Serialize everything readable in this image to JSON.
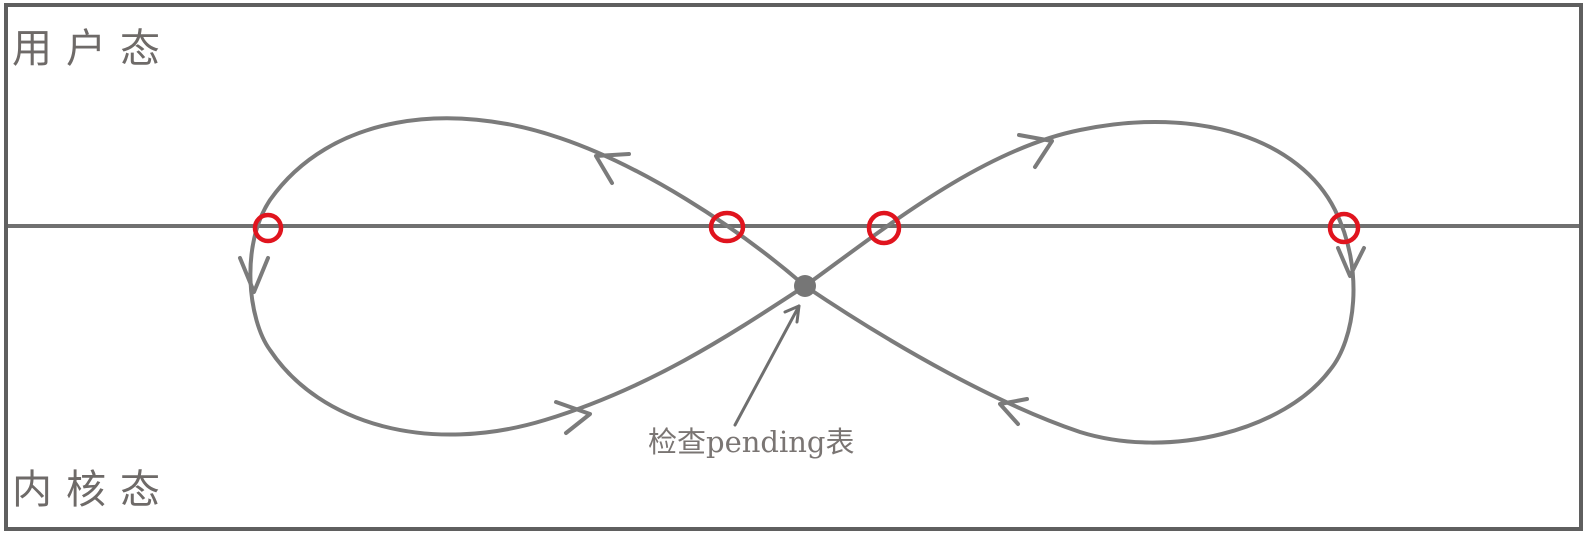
{
  "zones": {
    "user_mode_label": "用户态",
    "kernel_mode_label": "内核态"
  },
  "annotation": {
    "pending_check_label": "检查pending表"
  },
  "colors": {
    "frame": "#5f5f5f",
    "curve": "#7b7b7b",
    "boundary_marker": "#e0141e",
    "text": "#6e6a68"
  }
}
